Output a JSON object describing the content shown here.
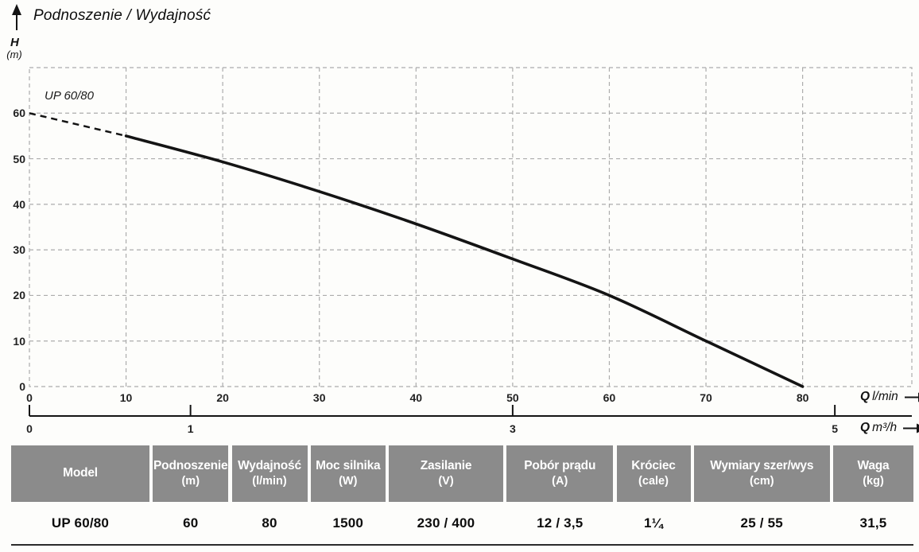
{
  "chart_data": {
    "type": "line",
    "title": "Podnoszenie / Wydajność",
    "grid": "dashed",
    "legend_position": "inside-top-left",
    "series": [
      {
        "name": "UP 60/80",
        "dashed_points": [
          [
            0,
            60
          ],
          [
            10,
            55
          ]
        ],
        "solid_points": [
          [
            10,
            55
          ],
          [
            20,
            49.3
          ],
          [
            30,
            42.8
          ],
          [
            40,
            35.7
          ],
          [
            50,
            28
          ],
          [
            60,
            20
          ],
          [
            70,
            10
          ],
          [
            80,
            0
          ]
        ]
      }
    ],
    "x_axis_primary": {
      "symbol": "Q",
      "unit": "l/min",
      "ticks": [
        0,
        10,
        20,
        30,
        40,
        50,
        60,
        70,
        80
      ],
      "range_lmin": [
        0,
        91.3
      ]
    },
    "x_axis_secondary": {
      "symbol": "Q",
      "unit": "m³/h",
      "ticks": [
        0,
        1,
        3,
        5
      ],
      "lmin_per_unit": 16.6667
    },
    "y_axis": {
      "symbol": "H",
      "unit": "(m)",
      "ticks": [
        0,
        10,
        20,
        30,
        40,
        50,
        60
      ],
      "range_m": [
        0,
        70
      ]
    }
  },
  "colors": {
    "grid": "#acacac",
    "curve": "#141414",
    "axis": "#141414",
    "table_header_bg": "#8b8b8b",
    "table_header_text": "#ffffff"
  },
  "table": {
    "headers": [
      {
        "title": "Model",
        "unit": ""
      },
      {
        "title": "Podnoszenie",
        "unit": "(m)"
      },
      {
        "title": "Wydajność",
        "unit": "(l/min)"
      },
      {
        "title": "Moc silnika",
        "unit": "(W)"
      },
      {
        "title": "Zasilanie",
        "unit": "(V)"
      },
      {
        "title": "Pobór prądu",
        "unit": "(A)"
      },
      {
        "title": "Króciec",
        "unit": "(cale)"
      },
      {
        "title": "Wymiary szer/wys",
        "unit": "(cm)"
      },
      {
        "title": "Waga",
        "unit": "(kg)"
      }
    ],
    "rows": [
      [
        "UP 60/80",
        "60",
        "80",
        "1500",
        "230 / 400",
        "12 / 3,5",
        "1¼",
        "25 / 55",
        "31,5"
      ]
    ]
  }
}
